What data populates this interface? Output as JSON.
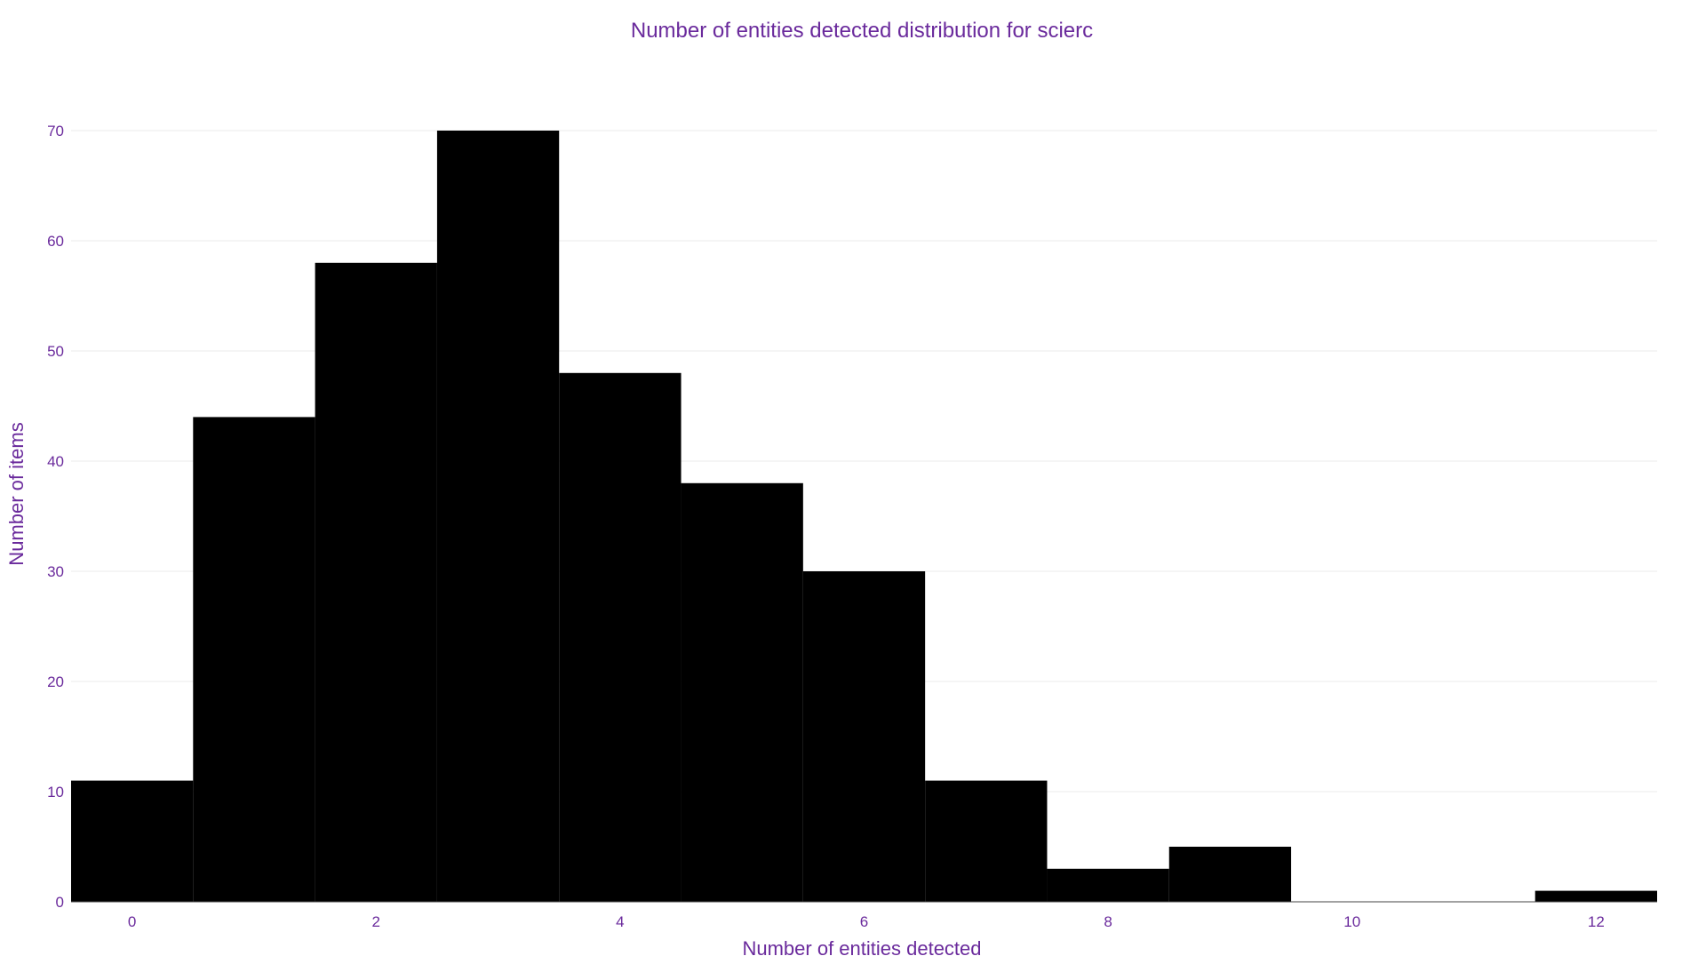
{
  "chart_data": {
    "type": "bar",
    "title": "Number of entities detected distribution for scierc",
    "xlabel": "Number of entities detected",
    "ylabel": "Number of items",
    "categories": [
      0,
      1,
      2,
      3,
      4,
      5,
      6,
      7,
      8,
      9,
      10,
      11,
      12
    ],
    "values": [
      11,
      44,
      58,
      70,
      48,
      38,
      30,
      11,
      3,
      5,
      0,
      0,
      1
    ],
    "bin_width": 1,
    "xlim": [
      -0.5,
      12.5
    ],
    "ylim": [
      0,
      70
    ],
    "xticks": [
      0,
      2,
      4,
      6,
      8,
      10,
      12
    ],
    "yticks": [
      0,
      10,
      20,
      30,
      40,
      50,
      60,
      70
    ],
    "grid": true,
    "legend": "none",
    "colors": {
      "bar": "#000000",
      "text": "#6a2a9c",
      "grid": "#ebebeb",
      "background": "#ffffff"
    }
  }
}
